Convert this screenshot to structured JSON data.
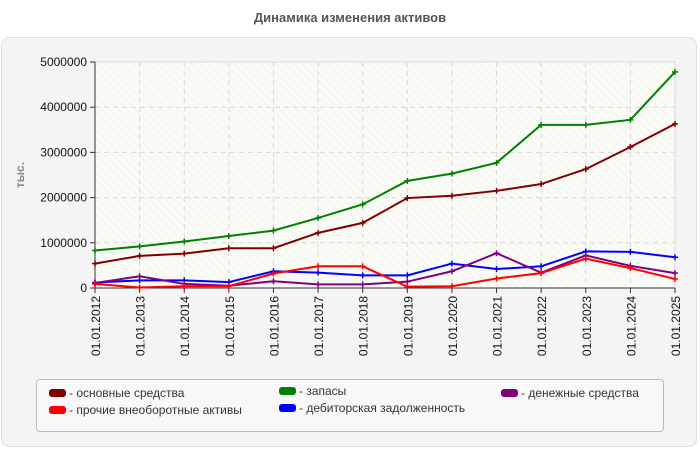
{
  "chart_data": {
    "type": "line",
    "title": "Динамика изменения активов",
    "xlabel": "",
    "ylabel": "тыс.",
    "ylim": [
      0,
      5000000
    ],
    "yticks": [
      "0",
      "1000000",
      "2000000",
      "3000000",
      "4000000",
      "5000000"
    ],
    "grid": true,
    "legend_position": "bottom",
    "categories": [
      "01.01.2012",
      "01.01.2013",
      "01.01.2014",
      "01.01.2015",
      "01.01.2016",
      "01.01.2017",
      "01.01.2018",
      "01.01.2019",
      "01.01.2020",
      "01.01.2021",
      "01.01.2022",
      "01.01.2023",
      "01.01.2024",
      "01.01.2025"
    ],
    "series": [
      {
        "name": "основные средства",
        "color": "#800000",
        "values": [
          540000,
          710000,
          760000,
          880000,
          880000,
          1220000,
          1440000,
          1990000,
          2040000,
          2150000,
          2300000,
          2630000,
          3120000,
          3630000
        ]
      },
      {
        "name": "прочие внеоборотные активы",
        "color": "#ff0000",
        "values": [
          90000,
          10000,
          40000,
          40000,
          320000,
          480000,
          480000,
          30000,
          40000,
          210000,
          330000,
          650000,
          440000,
          200000
        ]
      },
      {
        "name": "запасы",
        "color": "#008000",
        "values": [
          830000,
          920000,
          1030000,
          1150000,
          1270000,
          1550000,
          1850000,
          2370000,
          2530000,
          2770000,
          3610000,
          3610000,
          3720000,
          4780000
        ]
      },
      {
        "name": "дебиторская задолженность",
        "color": "#0000ff",
        "values": [
          120000,
          170000,
          170000,
          130000,
          370000,
          340000,
          280000,
          280000,
          540000,
          420000,
          480000,
          810000,
          800000,
          680000
        ]
      },
      {
        "name": "денежные средства",
        "color": "#800080",
        "values": [
          110000,
          260000,
          90000,
          50000,
          150000,
          80000,
          80000,
          140000,
          370000,
          770000,
          340000,
          720000,
          490000,
          330000
        ]
      }
    ]
  },
  "legend": {
    "items": [
      {
        "label": "- основные средства",
        "color": "#800000"
      },
      {
        "label": "- прочие внеоборотные активы",
        "color": "#ff0000"
      },
      {
        "label": "- запасы",
        "color": "#008000"
      },
      {
        "label": "- дебиторская задолженность",
        "color": "#0000ff"
      },
      {
        "label": "- денежные средства",
        "color": "#800080"
      }
    ]
  }
}
